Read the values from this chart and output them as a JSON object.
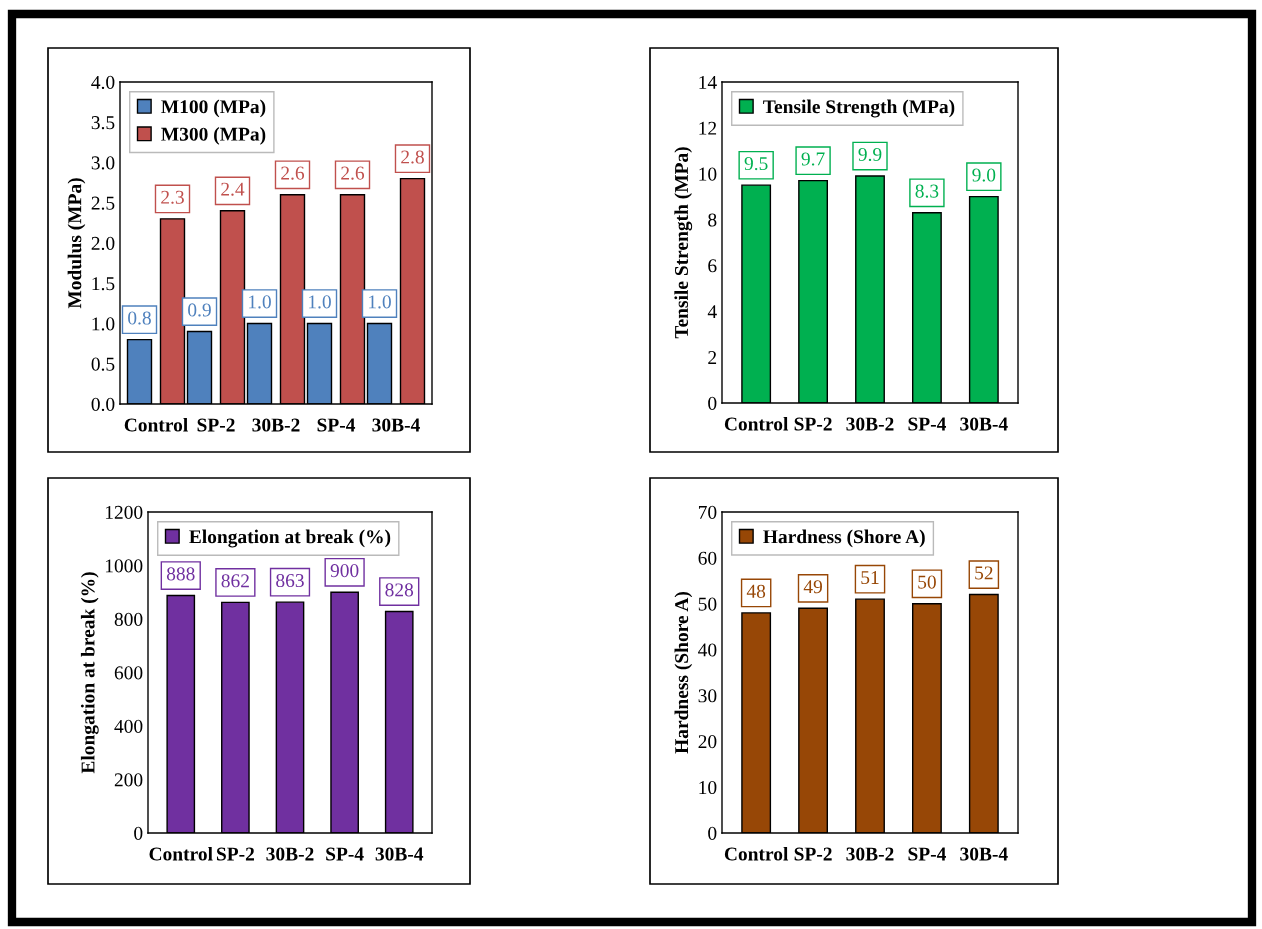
{
  "chart_data": [
    {
      "type": "bar",
      "categories": [
        "Control",
        "SP-2",
        "30B-2",
        "SP-4",
        "30B-4"
      ],
      "ylabel": "Modulus (MPa)",
      "ylim": [
        0,
        4
      ],
      "yticks": [
        {
          "value": 0,
          "label": "0.0"
        },
        {
          "value": 0.5,
          "label": "0.5"
        },
        {
          "value": 1,
          "label": "1.0"
        },
        {
          "value": 1.5,
          "label": "1.5"
        },
        {
          "value": 2,
          "label": "2.0"
        },
        {
          "value": 2.5,
          "label": "2.5"
        },
        {
          "value": 3,
          "label": "3.0"
        },
        {
          "value": 3.5,
          "label": "3.5"
        },
        {
          "value": 4,
          "label": "4.0"
        }
      ],
      "series": [
        {
          "name": "M100 (MPa)",
          "color": "#4f81bd",
          "values": [
            0.8,
            0.9,
            1.0,
            1.0,
            1.0
          ],
          "value_labels": [
            "0.8",
            "0.9",
            "1.0",
            "1.0",
            "1.0"
          ]
        },
        {
          "name": "M300 (MPa)",
          "color": "#c0504d",
          "values": [
            2.3,
            2.4,
            2.6,
            2.6,
            2.8
          ],
          "value_labels": [
            "2.3",
            "2.4",
            "2.6",
            "2.6",
            "2.8"
          ]
        }
      ],
      "legend": "top left",
      "grid": false
    },
    {
      "type": "bar",
      "categories": [
        "Control",
        "SP-2",
        "30B-2",
        "SP-4",
        "30B-4"
      ],
      "ylabel": "Tensile Strength (MPa)",
      "ylim": [
        0,
        14
      ],
      "yticks": [
        0,
        2,
        4,
        6,
        8,
        10,
        12,
        14
      ],
      "series": [
        {
          "name": "Tensile Strength (MPa)",
          "color": "#00b050",
          "values": [
            9.5,
            9.7,
            9.9,
            8.3,
            9.0
          ],
          "value_labels": [
            "9.5",
            "9.7",
            "9.9",
            "8.3",
            "9.0"
          ]
        }
      ],
      "legend": "top left",
      "grid": false
    },
    {
      "type": "bar",
      "categories": [
        "Control",
        "SP-2",
        "30B-2",
        "SP-4",
        "30B-4"
      ],
      "ylabel": "Elongation at break (%)",
      "ylim": [
        0,
        1200
      ],
      "yticks": [
        0,
        200,
        400,
        600,
        800,
        1000,
        1200
      ],
      "series": [
        {
          "name": "Elongation at break (%)",
          "color": "#7030a0",
          "values": [
            888,
            862,
            863,
            900,
            828
          ]
        }
      ],
      "data_labels": true,
      "legend": "top left",
      "grid": false
    },
    {
      "type": "bar",
      "categories": [
        "Control",
        "SP-2",
        "30B-2",
        "SP-4",
        "30B-4"
      ],
      "ylabel": "Hardness (Shore A)",
      "ylim": [
        0,
        70
      ],
      "yticks": [
        0,
        10,
        20,
        30,
        40,
        50,
        60,
        70
      ],
      "series": [
        {
          "name": "Hardness (Shore A)",
          "color": "#974706",
          "values": [
            48,
            49,
            51,
            50,
            52
          ]
        }
      ],
      "data_labels": true,
      "legend": "top left",
      "grid": false
    }
  ]
}
